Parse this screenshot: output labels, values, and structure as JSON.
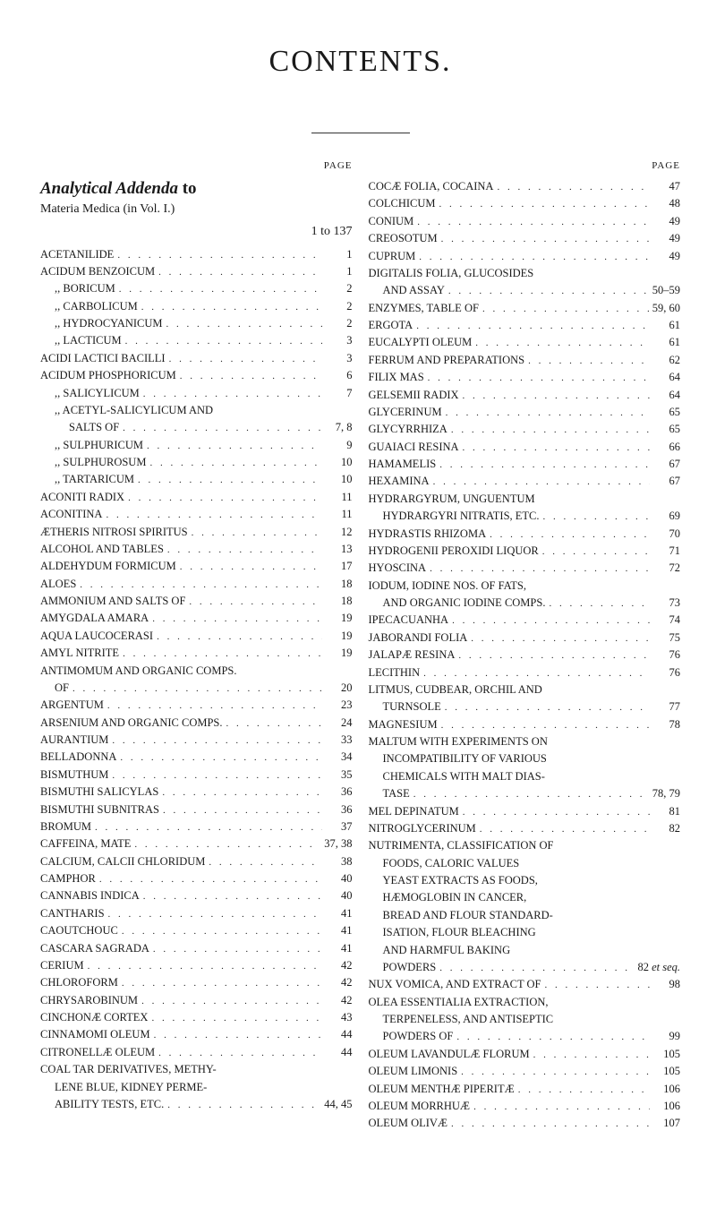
{
  "title": "CONTENTS.",
  "pageLabel": "PAGE",
  "leftColumn": {
    "heading_prefix": "Analytical Addenda",
    "heading_suffix": "to",
    "subheading_text": "Materia Medica (in Vol. I.)",
    "subheading_range": "1 to 137",
    "entries": [
      {
        "label": "ACETANILIDE",
        "page": "1",
        "indent": 0
      },
      {
        "label": "ACIDUM BENZOICUM",
        "page": "1",
        "indent": 0
      },
      {
        "label": ",,   BORICUM",
        "page": "2",
        "indent": 1
      },
      {
        "label": ",,   CARBOLICUM",
        "page": "2",
        "indent": 1
      },
      {
        "label": ",,   HYDROCYANICUM",
        "page": "2",
        "indent": 1
      },
      {
        "label": ",,   LACTICUM",
        "page": "3",
        "indent": 1
      },
      {
        "label": "ACIDI LACTICI BACILLI",
        "page": "3",
        "indent": 0
      },
      {
        "label": "ACIDUM PHOSPHORICUM",
        "page": "6",
        "indent": 0
      },
      {
        "label": ",,   SALICYLICUM",
        "page": "7",
        "indent": 1
      },
      {
        "label": ",,   ACETYL-SALICYLICUM AND",
        "page": "",
        "indent": 1,
        "noLeader": true
      },
      {
        "label": "SALTS OF",
        "page": "7, 8",
        "indent": 2
      },
      {
        "label": ",,   SULPHURICUM",
        "page": "9",
        "indent": 1
      },
      {
        "label": ",,   SULPHUROSUM",
        "page": "10",
        "indent": 1
      },
      {
        "label": ",,   TARTARICUM",
        "page": "10",
        "indent": 1
      },
      {
        "label": "ACONITI RADIX",
        "page": "11",
        "indent": 0
      },
      {
        "label": "ACONITINA",
        "page": "11",
        "indent": 0
      },
      {
        "label": "ÆTHERIS NITROSI SPIRITUS",
        "page": "12",
        "indent": 0
      },
      {
        "label": "ALCOHOL AND TABLES",
        "page": "13",
        "indent": 0
      },
      {
        "label": "ALDEHYDUM FORMICUM",
        "page": "17",
        "indent": 0
      },
      {
        "label": "ALOES",
        "page": "18",
        "indent": 0
      },
      {
        "label": "AMMONIUM AND SALTS OF",
        "page": "18",
        "indent": 0
      },
      {
        "label": "AMYGDALA AMARA",
        "page": "19",
        "indent": 0
      },
      {
        "label": "AQUA LAUCOCERASI",
        "page": "19",
        "indent": 0
      },
      {
        "label": "AMYL NITRITE",
        "page": "19",
        "indent": 0
      },
      {
        "label": "ANTIMOMUM AND ORGANIC COMPS.",
        "page": "",
        "indent": 0,
        "noLeader": true
      },
      {
        "label": "OF",
        "page": "20",
        "indent": 1
      },
      {
        "label": "ARGENTUM",
        "page": "23",
        "indent": 0
      },
      {
        "label": "ARSENIUM AND ORGANIC COMPS.",
        "page": "24",
        "indent": 0
      },
      {
        "label": "AURANTIUM",
        "page": "33",
        "indent": 0
      },
      {
        "label": "BELLADONNA",
        "page": "34",
        "indent": 0
      },
      {
        "label": "BISMUTHUM",
        "page": "35",
        "indent": 0
      },
      {
        "label": "BISMUTHI SALICYLAS",
        "page": "36",
        "indent": 0
      },
      {
        "label": "BISMUTHI SUBNITRAS",
        "page": "36",
        "indent": 0
      },
      {
        "label": "BROMUM",
        "page": "37",
        "indent": 0
      },
      {
        "label": "CAFFEINA, MATE",
        "page": "37, 38",
        "indent": 0
      },
      {
        "label": "CALCIUM, CALCII CHLORIDUM",
        "page": "38",
        "indent": 0
      },
      {
        "label": "CAMPHOR",
        "page": "40",
        "indent": 0
      },
      {
        "label": "CANNABIS INDICA",
        "page": "40",
        "indent": 0
      },
      {
        "label": "CANTHARIS",
        "page": "41",
        "indent": 0
      },
      {
        "label": "CAOUTCHOUC",
        "page": "41",
        "indent": 0
      },
      {
        "label": "CASCARA SAGRADA",
        "page": "41",
        "indent": 0
      },
      {
        "label": "CERIUM",
        "page": "42",
        "indent": 0
      },
      {
        "label": "CHLOROFORM",
        "page": "42",
        "indent": 0
      },
      {
        "label": "CHRYSAROBINUM",
        "page": "42",
        "indent": 0
      },
      {
        "label": "CINCHONÆ CORTEX",
        "page": "43",
        "indent": 0
      },
      {
        "label": "CINNAMOMI OLEUM",
        "page": "44",
        "indent": 0
      },
      {
        "label": "CITRONELLÆ OLEUM",
        "page": "44",
        "indent": 0
      },
      {
        "label": "COAL TAR DERIVATIVES, METHY-",
        "page": "",
        "indent": 0,
        "noLeader": true
      },
      {
        "label": "LENE BLUE, KIDNEY PERME-",
        "page": "",
        "indent": 1,
        "noLeader": true
      },
      {
        "label": "ABILITY TESTS, ETC.",
        "page": "44, 45",
        "indent": 1
      }
    ]
  },
  "rightColumn": {
    "entries": [
      {
        "label": "COCÆ FOLIA, COCAINA",
        "page": "47",
        "indent": 0
      },
      {
        "label": "COLCHICUM",
        "page": "48",
        "indent": 0
      },
      {
        "label": "CONIUM",
        "page": "49",
        "indent": 0
      },
      {
        "label": "CREOSOTUM",
        "page": "49",
        "indent": 0
      },
      {
        "label": "CUPRUM",
        "page": "49",
        "indent": 0
      },
      {
        "label": "DIGITALIS FOLIA, GLUCOSIDES",
        "page": "",
        "indent": 0,
        "noLeader": true
      },
      {
        "label": "AND ASSAY",
        "page": "50–59",
        "indent": 1
      },
      {
        "label": "ENZYMES, TABLE OF",
        "page": "59, 60",
        "indent": 0
      },
      {
        "label": "ERGOTA",
        "page": "61",
        "indent": 0
      },
      {
        "label": "EUCALYPTI OLEUM",
        "page": "61",
        "indent": 0
      },
      {
        "label": "FERRUM AND PREPARATIONS",
        "page": "62",
        "indent": 0
      },
      {
        "label": "FILIX MAS",
        "page": "64",
        "indent": 0
      },
      {
        "label": "GELSEMII RADIX",
        "page": "64",
        "indent": 0
      },
      {
        "label": "GLYCERINUM",
        "page": "65",
        "indent": 0
      },
      {
        "label": "GLYCYRRHIZA",
        "page": "65",
        "indent": 0
      },
      {
        "label": "GUAIACI RESINA",
        "page": "66",
        "indent": 0
      },
      {
        "label": "HAMAMELIS",
        "page": "67",
        "indent": 0
      },
      {
        "label": "HEXAMINA",
        "page": "67",
        "indent": 0
      },
      {
        "label": "HYDRARGYRUM,   UNGUENTUM",
        "page": "",
        "indent": 0,
        "noLeader": true
      },
      {
        "label": "HYDRARGYRI NITRATIS, ETC.",
        "page": "69",
        "indent": 1
      },
      {
        "label": "HYDRASTIS RHIZOMA",
        "page": "70",
        "indent": 0
      },
      {
        "label": "HYDROGENII PEROXIDI LIQUOR",
        "page": "71",
        "indent": 0
      },
      {
        "label": "HYOSCINA",
        "page": "72",
        "indent": 0
      },
      {
        "label": "IODUM, IODINE NOS. OF FATS,",
        "page": "",
        "indent": 0,
        "noLeader": true
      },
      {
        "label": "AND ORGANIC IODINE COMPS.",
        "page": "73",
        "indent": 1
      },
      {
        "label": "IPECACUANHA",
        "page": "74",
        "indent": 0
      },
      {
        "label": "JABORANDI FOLIA",
        "page": "75",
        "indent": 0
      },
      {
        "label": "JALAPÆ RESINA",
        "page": "76",
        "indent": 0
      },
      {
        "label": "LECITHIN",
        "page": "76",
        "indent": 0
      },
      {
        "label": "LITMUS, CUDBEAR, ORCHIL AND",
        "page": "",
        "indent": 0,
        "noLeader": true
      },
      {
        "label": "TURNSOLE",
        "page": "77",
        "indent": 1
      },
      {
        "label": "MAGNESIUM",
        "page": "78",
        "indent": 0
      },
      {
        "label": "MALTUM WITH EXPERIMENTS ON",
        "page": "",
        "indent": 0,
        "noLeader": true
      },
      {
        "label": "INCOMPATIBILITY OF VARIOUS",
        "page": "",
        "indent": 1,
        "noLeader": true
      },
      {
        "label": "CHEMICALS WITH MALT DIAS-",
        "page": "",
        "indent": 1,
        "noLeader": true
      },
      {
        "label": "TASE",
        "page": "78, 79",
        "indent": 1
      },
      {
        "label": "MEL DEPINATUM",
        "page": "81",
        "indent": 0
      },
      {
        "label": "NITROGLYCERINUM",
        "page": "82",
        "indent": 0
      },
      {
        "label": "NUTRIMENTA, CLASSIFICATION OF",
        "page": "",
        "indent": 0,
        "noLeader": true
      },
      {
        "label": "FOODS,  CALORIC  VALUES",
        "page": "",
        "indent": 1,
        "noLeader": true
      },
      {
        "label": "YEAST EXTRACTS AS FOODS,",
        "page": "",
        "indent": 1,
        "noLeader": true
      },
      {
        "label": "HÆMOGLOBIN  IN  CANCER,",
        "page": "",
        "indent": 1,
        "noLeader": true
      },
      {
        "label": "BREAD AND FLOUR STANDARD-",
        "page": "",
        "indent": 1,
        "noLeader": true
      },
      {
        "label": "ISATION, FLOUR BLEACHING",
        "page": "",
        "indent": 1,
        "noLeader": true
      },
      {
        "label": "AND  HARMFUL  BAKING",
        "page": "",
        "indent": 1,
        "noLeader": true
      },
      {
        "label": "POWDERS",
        "page": "82 et seq.",
        "indent": 1,
        "italicPage": true
      },
      {
        "label": "NUX VOMICA, AND EXTRACT OF",
        "page": "98",
        "indent": 0
      },
      {
        "label": "OLEA ESSENTIALIA EXTRACTION,",
        "page": "",
        "indent": 0,
        "noLeader": true
      },
      {
        "label": "TERPENELESS, AND ANTISEPTIC",
        "page": "",
        "indent": 1,
        "noLeader": true
      },
      {
        "label": "POWDERS OF",
        "page": "99",
        "indent": 1
      },
      {
        "label": "OLEUM LAVANDULÆ FLORUM",
        "page": "105",
        "indent": 0
      },
      {
        "label": "OLEUM LIMONIS",
        "page": "105",
        "indent": 0
      },
      {
        "label": "OLEUM MENTHÆ PIPERITÆ",
        "page": "106",
        "indent": 0
      },
      {
        "label": "OLEUM MORRHUÆ",
        "page": "106",
        "indent": 0
      },
      {
        "label": "OLEUM OLIVÆ",
        "page": "107",
        "indent": 0
      }
    ]
  }
}
